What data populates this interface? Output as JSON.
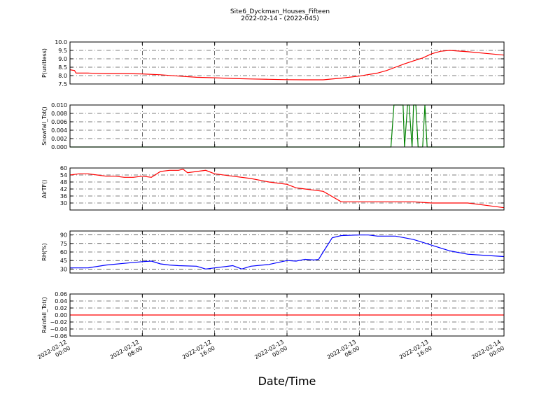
{
  "figure": {
    "title": "Site6_Dyckman_Houses_Fifteen",
    "subtitle": "2022-02-14 - (2022-045)",
    "xlabel": "Date/Time"
  },
  "chart_data": [
    {
      "type": "line",
      "ylabel": "P(unitless)",
      "color": "#ff0000",
      "xlim": [
        "2022-02-12 00:00",
        "2022-02-14 00:00"
      ],
      "ylim": [
        7.5,
        10.0
      ],
      "yticks": [
        "7.5",
        "8.0",
        "8.5",
        "9.0",
        "9.5",
        "10.0"
      ],
      "yvalues": [
        7.5,
        8.0,
        8.5,
        9.0,
        9.5,
        10.0
      ],
      "grid": true,
      "series": [
        {
          "x": [
            "2022-02-12 00:00",
            "2022-02-12 00:30",
            "2022-02-12 00:40",
            "2022-02-12 02:00",
            "2022-02-12 04:00",
            "2022-02-12 06:00",
            "2022-02-12 08:00",
            "2022-02-12 10:00",
            "2022-02-12 12:00",
            "2022-02-12 14:00",
            "2022-02-12 16:00",
            "2022-02-12 18:00",
            "2022-02-12 20:00",
            "2022-02-12 22:00",
            "2022-02-13 00:00",
            "2022-02-13 02:00",
            "2022-02-13 04:00",
            "2022-02-13 06:00",
            "2022-02-13 08:00",
            "2022-02-13 10:00",
            "2022-02-13 11:00",
            "2022-02-13 12:00",
            "2022-02-13 13:00",
            "2022-02-13 14:00",
            "2022-02-13 15:00",
            "2022-02-13 16:00",
            "2022-02-13 17:00",
            "2022-02-13 18:00",
            "2022-02-13 20:00",
            "2022-02-13 22:00",
            "2022-02-14 00:00"
          ],
          "y": [
            8.35,
            8.3,
            8.15,
            8.15,
            8.12,
            8.12,
            8.1,
            8.05,
            7.97,
            7.9,
            7.87,
            7.83,
            7.8,
            7.78,
            7.76,
            7.75,
            7.75,
            7.85,
            7.97,
            8.15,
            8.3,
            8.5,
            8.7,
            8.88,
            9.05,
            9.3,
            9.45,
            9.5,
            9.42,
            9.32,
            9.22
          ]
        }
      ]
    },
    {
      "type": "line",
      "ylabel": "Snowfall_Tot()",
      "color": "#008000",
      "xlim": [
        "2022-02-12 00:00",
        "2022-02-14 00:00"
      ],
      "ylim": [
        0.0,
        0.01
      ],
      "yticks": [
        "0.000",
        "0.002",
        "0.004",
        "0.006",
        "0.008",
        "0.010"
      ],
      "yvalues": [
        0.0,
        0.002,
        0.004,
        0.006,
        0.008,
        0.01
      ],
      "grid": true,
      "series": [
        {
          "x": [
            "2022-02-12 00:00",
            "2022-02-13 11:30",
            "2022-02-13 11:50",
            "2022-02-13 12:50",
            "2022-02-13 13:00",
            "2022-02-13 13:20",
            "2022-02-13 13:30",
            "2022-02-13 13:50",
            "2022-02-13 14:00",
            "2022-02-13 14:15",
            "2022-02-13 14:30",
            "2022-02-13 15:00",
            "2022-02-13 15:15",
            "2022-02-13 15:30",
            "2022-02-14 00:00"
          ],
          "y": [
            0,
            0,
            0.01,
            0.01,
            0,
            0.01,
            0.01,
            0,
            0.01,
            0.01,
            0,
            0,
            0.01,
            0,
            0
          ]
        }
      ]
    },
    {
      "type": "line",
      "ylabel": "AirTF()",
      "color": "#ff0000",
      "xlim": [
        "2022-02-12 00:00",
        "2022-02-14 00:00"
      ],
      "ylim": [
        24,
        60
      ],
      "yticks": [
        "30",
        "36",
        "42",
        "48",
        "54",
        "60"
      ],
      "yvalues": [
        30,
        36,
        42,
        48,
        54,
        60
      ],
      "grid": true,
      "series": [
        {
          "x": [
            "2022-02-12 00:00",
            "2022-02-12 01:00",
            "2022-02-12 02:00",
            "2022-02-12 03:00",
            "2022-02-12 04:00",
            "2022-02-12 05:00",
            "2022-02-12 06:00",
            "2022-02-12 07:00",
            "2022-02-12 08:00",
            "2022-02-12 09:00",
            "2022-02-12 10:00",
            "2022-02-12 11:00",
            "2022-02-12 12:00",
            "2022-02-12 12:30",
            "2022-02-12 13:00",
            "2022-02-12 14:00",
            "2022-02-12 15:00",
            "2022-02-12 16:00",
            "2022-02-12 18:00",
            "2022-02-12 20:00",
            "2022-02-12 22:00",
            "2022-02-13 00:00",
            "2022-02-13 01:00",
            "2022-02-13 02:00",
            "2022-02-13 03:00",
            "2022-02-13 04:00",
            "2022-02-13 06:00",
            "2022-02-13 08:00",
            "2022-02-13 10:00",
            "2022-02-13 12:00",
            "2022-02-13 14:00",
            "2022-02-13 16:00",
            "2022-02-13 18:00",
            "2022-02-13 20:00",
            "2022-02-13 22:00",
            "2022-02-14 00:00"
          ],
          "y": [
            54,
            55,
            55,
            54,
            53,
            53,
            52,
            52,
            53,
            52,
            57,
            58,
            58,
            59,
            56,
            57,
            58,
            55,
            53,
            51,
            48,
            46,
            43,
            42,
            41,
            40,
            31,
            31,
            31,
            31,
            31,
            30,
            30,
            30,
            28,
            26
          ]
        }
      ]
    },
    {
      "type": "line",
      "ylabel": "RH(%)",
      "color": "#0000ff",
      "xlim": [
        "2022-02-12 00:00",
        "2022-02-14 00:00"
      ],
      "ylim": [
        23,
        97
      ],
      "yticks": [
        "30",
        "45",
        "60",
        "75",
        "90"
      ],
      "yvalues": [
        30,
        45,
        60,
        75,
        90
      ],
      "grid": true,
      "series": [
        {
          "x": [
            "2022-02-12 00:00",
            "2022-02-12 02:00",
            "2022-02-12 04:00",
            "2022-02-12 06:00",
            "2022-02-12 08:00",
            "2022-02-12 09:00",
            "2022-02-12 10:00",
            "2022-02-12 11:00",
            "2022-02-12 12:00",
            "2022-02-12 14:00",
            "2022-02-12 15:00",
            "2022-02-12 16:00",
            "2022-02-12 18:00",
            "2022-02-12 19:00",
            "2022-02-12 20:00",
            "2022-02-12 22:00",
            "2022-02-13 00:00",
            "2022-02-13 01:00",
            "2022-02-13 02:00",
            "2022-02-13 03:00",
            "2022-02-13 03:30",
            "2022-02-13 04:00",
            "2022-02-13 05:00",
            "2022-02-13 06:00",
            "2022-02-13 08:00",
            "2022-02-13 09:00",
            "2022-02-13 10:00",
            "2022-02-13 12:00",
            "2022-02-13 13:00",
            "2022-02-13 14:00",
            "2022-02-13 15:00",
            "2022-02-13 16:00",
            "2022-02-13 18:00",
            "2022-02-13 20:00",
            "2022-02-13 22:00",
            "2022-02-14 00:00"
          ],
          "y": [
            32,
            32,
            37,
            40,
            43,
            44,
            39,
            37,
            36,
            35,
            30,
            32,
            36,
            30,
            35,
            38,
            45,
            44,
            47,
            46,
            47,
            60,
            85,
            89,
            90,
            90,
            88,
            88,
            85,
            82,
            77,
            72,
            62,
            56,
            54,
            52
          ]
        }
      ]
    },
    {
      "type": "line",
      "ylabel": "Rainfall_Tot()",
      "color": "#ff0000",
      "xlim": [
        "2022-02-12 00:00",
        "2022-02-14 00:00"
      ],
      "ylim": [
        -0.06,
        0.06
      ],
      "yticks": [
        "−0.06",
        "−0.04",
        "−0.02",
        "0.00",
        "0.02",
        "0.04",
        "0.06"
      ],
      "yvalues": [
        -0.06,
        -0.04,
        -0.02,
        0.0,
        0.02,
        0.04,
        0.06
      ],
      "grid": true,
      "series": [
        {
          "x": [
            "2022-02-12 00:00",
            "2022-02-14 00:00"
          ],
          "y": [
            0,
            0
          ]
        }
      ]
    }
  ],
  "xaxis": {
    "ticks": [
      {
        "date": "2022-02-12",
        "time": "00:00",
        "at": "2022-02-12 00:00"
      },
      {
        "date": "2022-02-12",
        "time": "08:00",
        "at": "2022-02-12 08:00"
      },
      {
        "date": "2022-02-12",
        "time": "16:00",
        "at": "2022-02-12 16:00"
      },
      {
        "date": "2022-02-13",
        "time": "00:00",
        "at": "2022-02-13 00:00"
      },
      {
        "date": "2022-02-13",
        "time": "08:00",
        "at": "2022-02-13 08:00"
      },
      {
        "date": "2022-02-13",
        "time": "16:00",
        "at": "2022-02-13 16:00"
      },
      {
        "date": "2022-02-14",
        "time": "00:00",
        "at": "2022-02-14 00:00"
      }
    ]
  }
}
